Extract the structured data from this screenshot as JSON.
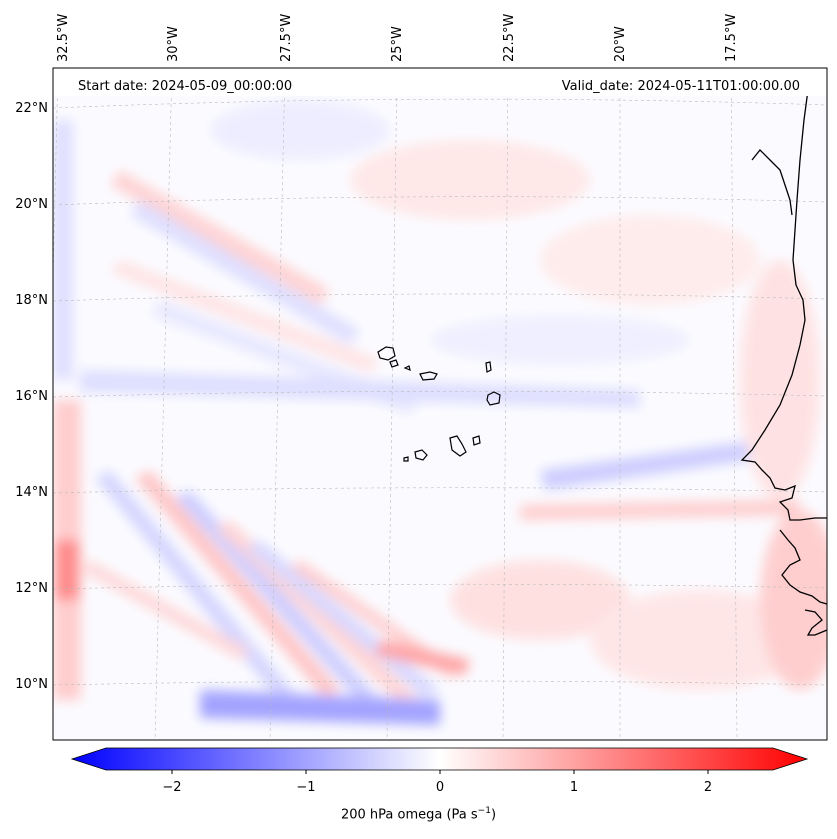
{
  "header": {
    "start_date": "Start date: 2024-05-09_00:00:00",
    "valid_date": "Valid_date: 2024-05-11T01:00:00.00"
  },
  "map": {
    "region": "Cape Verde / West Africa coast",
    "longitude_ticks": [
      "32.5°W",
      "30°W",
      "27.5°W",
      "25°W",
      "22.5°W",
      "20°W",
      "17.5°W"
    ],
    "latitude_ticks": [
      "22°N",
      "20°N",
      "18°N",
      "16°N",
      "14°N",
      "12°N",
      "10°N"
    ],
    "gridlines": true,
    "field": "200 hPa omega"
  },
  "colorbar": {
    "colormap": "bwr",
    "range": [
      -2.6,
      2.6
    ],
    "extend": "both",
    "ticks": [
      -2,
      -1,
      0,
      1,
      2
    ],
    "tick_labels": [
      "−2",
      "−1",
      "0",
      "1",
      "2"
    ],
    "label": "200 hPa omega (Pa s",
    "label_exponent": "−1",
    "label_suffix": ")"
  },
  "colors": {
    "negative": "#0000ff",
    "zero": "#ffffff",
    "positive": "#ff0000",
    "coastline": "#000000",
    "grid": "#bbbbbb"
  }
}
